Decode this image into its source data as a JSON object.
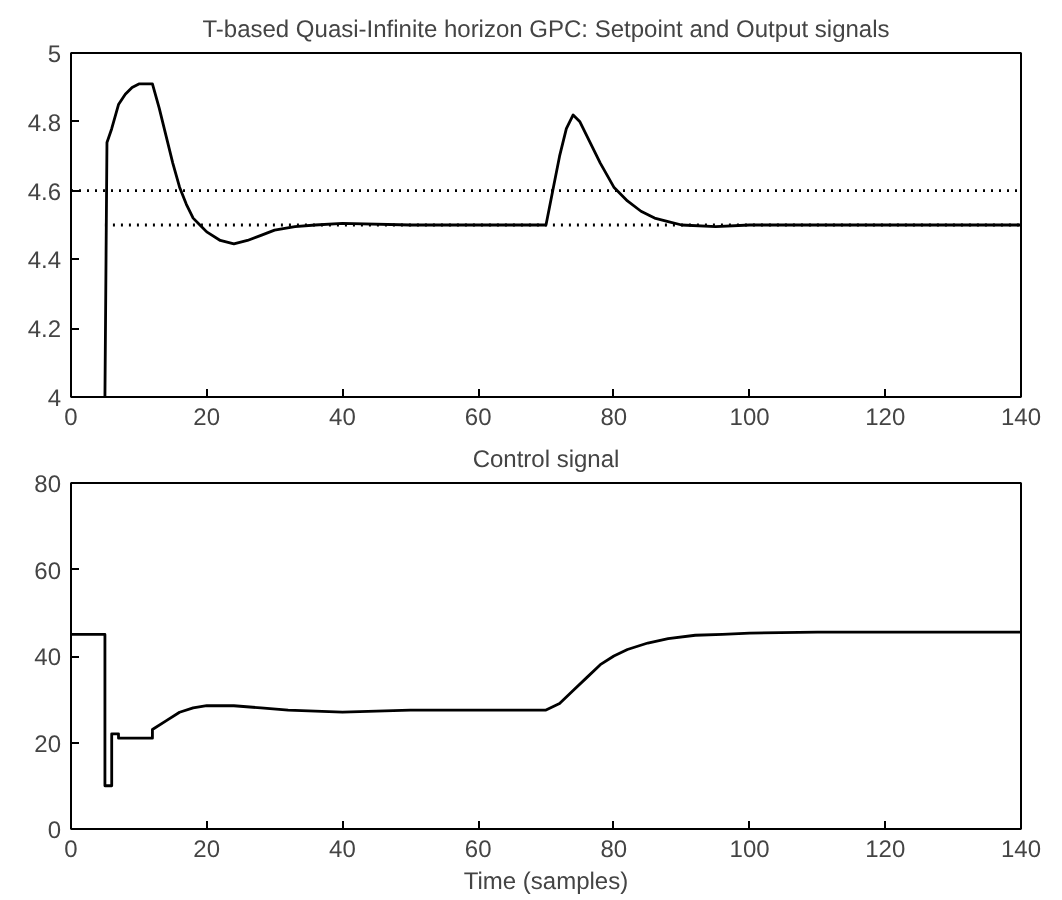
{
  "chart_data": [
    {
      "type": "line",
      "title": "T-based Quasi-Infinite horizon GPC: Setpoint and Output signals",
      "xlim": [
        0,
        140
      ],
      "ylim": [
        4,
        5
      ],
      "xticks": [
        0,
        20,
        40,
        60,
        80,
        100,
        120,
        140
      ],
      "yticks": [
        4,
        4.2,
        4.4,
        4.6,
        4.8,
        5
      ],
      "series": [
        {
          "color": "#000000",
          "line_style": "dotted",
          "x": [
            0,
            140
          ],
          "values": [
            4.6,
            4.6
          ]
        },
        {
          "color": "#000000",
          "line_style": "dotted",
          "x": [
            5,
            140
          ],
          "values": [
            4.5,
            4.5
          ]
        },
        {
          "color": "#000000",
          "line_style": "solid",
          "x": [
            5,
            5.3,
            6,
            7,
            8,
            9,
            10,
            12,
            13,
            14,
            15,
            16,
            17,
            18,
            19,
            20,
            22,
            24,
            26,
            28,
            30,
            33,
            36,
            40,
            50,
            60,
            70,
            71,
            72,
            73,
            74,
            75,
            76,
            78,
            80,
            82,
            84,
            86,
            88,
            90,
            95,
            100,
            110,
            120,
            140
          ],
          "values": [
            4.0,
            4.74,
            4.78,
            4.85,
            4.88,
            4.9,
            4.91,
            4.91,
            4.84,
            4.76,
            4.68,
            4.61,
            4.56,
            4.52,
            4.5,
            4.48,
            4.455,
            4.445,
            4.455,
            4.47,
            4.485,
            4.495,
            4.5,
            4.505,
            4.5,
            4.5,
            4.5,
            4.6,
            4.7,
            4.78,
            4.82,
            4.8,
            4.76,
            4.68,
            4.61,
            4.57,
            4.54,
            4.52,
            4.51,
            4.5,
            4.495,
            4.5,
            4.5,
            4.5,
            4.5
          ]
        }
      ]
    },
    {
      "type": "line",
      "title": "Control signal",
      "xlabel": "Time (samples)",
      "xlim": [
        0,
        140
      ],
      "ylim": [
        0,
        80
      ],
      "xticks": [
        0,
        20,
        40,
        60,
        80,
        100,
        120,
        140
      ],
      "yticks": [
        0,
        20,
        40,
        60,
        80
      ],
      "series": [
        {
          "color": "#000000",
          "line_style": "solid",
          "x": [
            0,
            5,
            5,
            6,
            6,
            7,
            7,
            12,
            12,
            14,
            16,
            18,
            20,
            24,
            28,
            32,
            40,
            50,
            60,
            70,
            72,
            74,
            76,
            78,
            80,
            82,
            85,
            88,
            92,
            96,
            100,
            110,
            120,
            140
          ],
          "values": [
            45,
            45,
            10,
            10,
            22,
            22,
            21,
            21,
            23,
            25,
            27,
            28,
            28.5,
            28.5,
            28,
            27.5,
            27,
            27.5,
            27.5,
            27.5,
            29,
            32,
            35,
            38,
            40,
            41.5,
            43,
            44,
            44.8,
            45,
            45.3,
            45.5,
            45.5,
            45.5
          ]
        }
      ]
    }
  ]
}
